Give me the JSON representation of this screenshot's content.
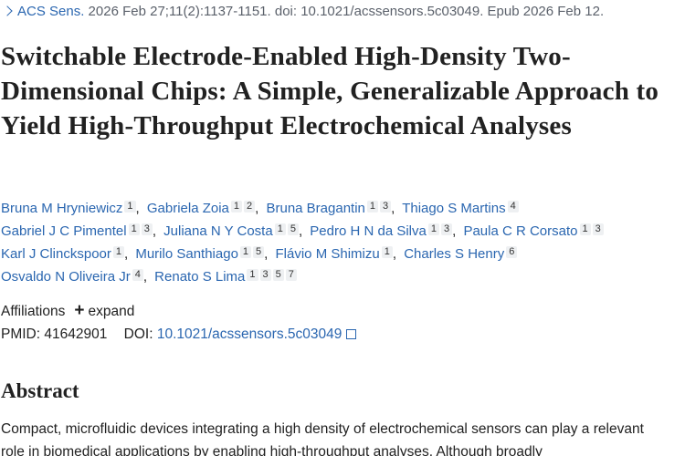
{
  "citation": {
    "journal": "ACS Sens.",
    "details": "2026 Feb 27;11(2):1137-1151. doi: 10.1021/acssensors.5c03049. Epub 2026 Feb 12."
  },
  "title": "Switchable Electrode-Enabled High-Density Two-Dimensional Chips: A Simple, Generalizable Approach to Yield High-Throughput Electrochemical Analyses",
  "authors": [
    [
      {
        "name": "Bruna M Hryniewicz",
        "affiliations": [
          "1"
        ]
      },
      {
        "name": "Gabriela Zoia",
        "affiliations": [
          "1",
          "2"
        ]
      },
      {
        "name": "Bruna Bragantin",
        "affiliations": [
          "1",
          "3"
        ]
      },
      {
        "name": "Thiago S Martins",
        "affiliations": [
          "4"
        ]
      }
    ],
    [
      {
        "name": "Gabriel J C Pimentel",
        "affiliations": [
          "1",
          "3"
        ]
      },
      {
        "name": "Juliana N Y Costa",
        "affiliations": [
          "1",
          "5"
        ]
      },
      {
        "name": "Pedro H N da Silva",
        "affiliations": [
          "1",
          "3"
        ]
      },
      {
        "name": "Paula C R Corsato",
        "affiliations": [
          "1",
          "3"
        ]
      }
    ],
    [
      {
        "name": "Karl J Clinckspoor",
        "affiliations": [
          "1"
        ]
      },
      {
        "name": "Murilo Santhiago",
        "affiliations": [
          "1",
          "5"
        ]
      },
      {
        "name": "Flávio M Shimizu",
        "affiliations": [
          "1"
        ]
      },
      {
        "name": "Charles S Henry",
        "affiliations": [
          "6"
        ]
      }
    ],
    [
      {
        "name": "Osvaldo N Oliveira Jr",
        "affiliations": [
          "4"
        ]
      },
      {
        "name": "Renato S Lima",
        "affiliations": [
          "1",
          "3",
          "5",
          "7"
        ]
      }
    ]
  ],
  "affiliations": {
    "label": "Affiliations",
    "toggle": "expand"
  },
  "identifiers": {
    "pmid_label": "PMID:",
    "pmid": "41642901",
    "doi_label": "DOI:",
    "doi": "10.1021/acssensors.5c03049"
  },
  "abstract": {
    "heading": "Abstract",
    "text": "Compact, microfluidic devices integrating a high density of electrochemical sensors can play a relevant role in biomedical applications by enabling high-throughput analyses. Although broadly"
  }
}
